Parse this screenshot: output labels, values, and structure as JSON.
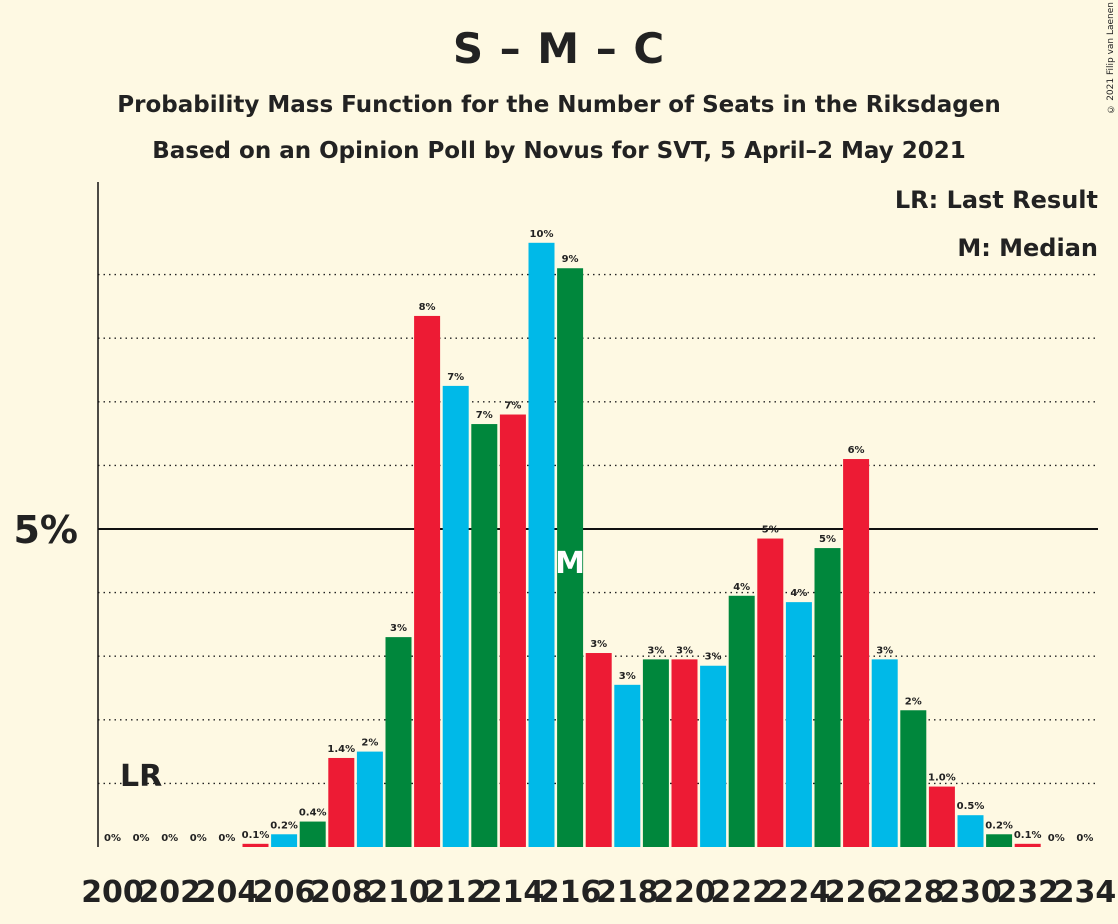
{
  "title": "S – M – C",
  "subtitle": "Probability Mass Function for the Number of Seats in the Riksdagen",
  "subtitle2": "Based on an Opinion Poll by Novus for SVT, 5 April–2 May 2021",
  "copyright": "© 2021 Filip van Laenen",
  "legend": {
    "lr": "LR: Last Result",
    "median": "M: Median"
  },
  "colors": {
    "blue": "#00B9E8",
    "green": "#00873C",
    "red": "#ED1B34",
    "background": "#FEF9E3"
  },
  "chart_data": {
    "type": "bar",
    "x": [
      200,
      201,
      202,
      203,
      204,
      205,
      206,
      207,
      208,
      209,
      210,
      211,
      212,
      213,
      214,
      215,
      216,
      217,
      218,
      219,
      220,
      221,
      222,
      223,
      224,
      225,
      226,
      227,
      228,
      229,
      230,
      231,
      232,
      233,
      234
    ],
    "values": [
      0,
      0,
      0,
      0,
      0,
      0.05,
      0.2,
      0.4,
      1.4,
      1.5,
      3.3,
      8.35,
      7.25,
      6.65,
      6.8,
      9.5,
      9.1,
      3.05,
      2.55,
      2.95,
      2.95,
      2.85,
      3.95,
      4.85,
      3.85,
      4.7,
      6.1,
      2.95,
      2.15,
      0.95,
      0.5,
      0.2,
      0.05,
      0,
      0
    ],
    "labels": [
      "0%",
      "0%",
      "0%",
      "0%",
      "0%",
      "0.1%",
      "0.2%",
      "0.4%",
      "1.4%",
      "2%",
      "3%",
      "8%",
      "7%",
      "7%",
      "7%",
      "10%",
      "9%",
      "3%",
      "3%",
      "3%",
      "3%",
      "3%",
      "4%",
      "5%",
      "4%",
      "5%",
      "6%",
      "3%",
      "2%",
      "1.0%",
      "0.5%",
      "0.2%",
      "0.1%",
      "0%",
      "0%"
    ],
    "colors_cycle": [
      "blue",
      "green",
      "red"
    ],
    "x_tick_labels": [
      "200",
      "202",
      "204",
      "206",
      "208",
      "210",
      "212",
      "214",
      "216",
      "218",
      "220",
      "222",
      "224",
      "226",
      "228",
      "230",
      "232",
      "234"
    ],
    "y_tick_label": "5%",
    "ylim": [
      0,
      10.35
    ],
    "last_result": {
      "seat": 201,
      "label": "LR"
    },
    "median": {
      "seat": 216,
      "label": "M"
    }
  }
}
